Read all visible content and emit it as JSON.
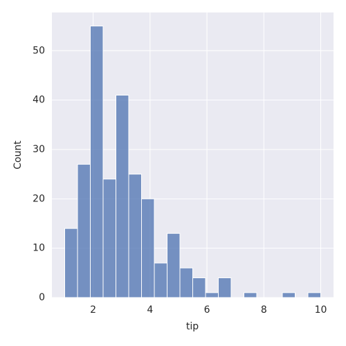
{
  "chart_data": {
    "type": "histogram",
    "x_label": "tip",
    "y_label": "Count",
    "bins": [
      1,
      1.45,
      1.9,
      2.35,
      2.8,
      3.25,
      3.7,
      4.15,
      4.6,
      5.05,
      5.5,
      5.95,
      6.4,
      6.85,
      7.3,
      7.75,
      8.2,
      8.65,
      9.1,
      9.55,
      10
    ],
    "values": [
      14,
      27,
      55,
      24,
      41,
      25,
      20,
      7,
      13,
      6,
      4,
      1,
      4,
      0,
      1,
      0,
      0,
      1,
      0,
      1
    ],
    "color": "#4c72b0",
    "xlim": [
      0.55,
      10.45
    ],
    "ylim": [
      0,
      57.75
    ],
    "xticks": [
      2,
      4,
      6,
      8,
      10
    ],
    "yticks": [
      0,
      10,
      20,
      30,
      40,
      50
    ],
    "grid": true
  }
}
